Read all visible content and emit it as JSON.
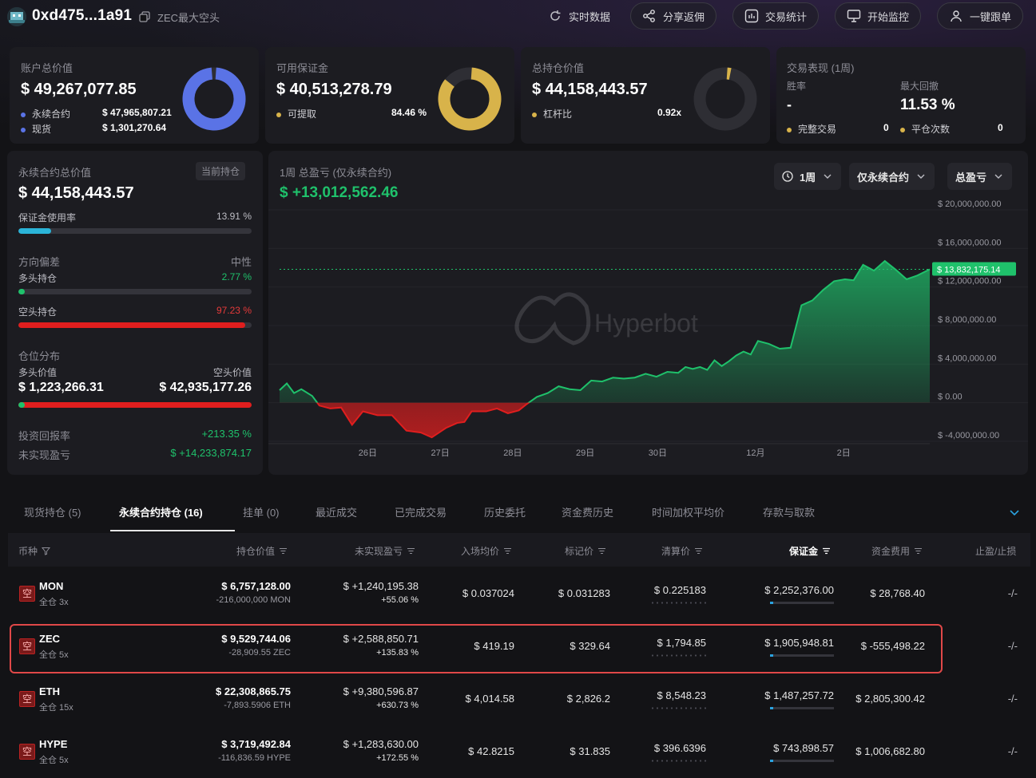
{
  "header": {
    "address": "0xd475...1a91",
    "tagline": "ZEC最大空头",
    "buttons": [
      "实时数据",
      "分享返佣",
      "交易统计",
      "开始监控",
      "一键跟单"
    ]
  },
  "cards": {
    "account": {
      "label": "账户总价值",
      "value": "$ 49,267,077.85",
      "perp_label": "永续合约",
      "perp_value": "$ 47,965,807.21",
      "spot_label": "现货",
      "spot_value": "$ 1,301,270.64",
      "perp_share": 0.974
    },
    "margin": {
      "label": "可用保证金",
      "value": "$ 40,513,278.79",
      "withdraw_label": "可提取",
      "withdraw_value": "84.46 %",
      "share": 0.8446
    },
    "position": {
      "label": "总持仓价值",
      "value": "$ 44,158,443.57",
      "leverage_label": "杠杆比",
      "leverage_value": "0.92x",
      "share": 0.02
    },
    "performance": {
      "label": "交易表现 (1周)",
      "winrate_label": "胜率",
      "winrate_value": "-",
      "drawdown_label": "最大回撤",
      "drawdown_value": "11.53 %",
      "complete_label": "完整交易",
      "complete_value": "0",
      "close_label": "平仓次数",
      "close_value": "0"
    }
  },
  "left_panel": {
    "title": "永续合约总价值",
    "pill": "当前持仓",
    "value": "$ 44,158,443.57",
    "margin_usage_label": "保证金使用率",
    "margin_usage_value": "13.91 %",
    "margin_usage": 0.1391,
    "bias_label": "方向偏差",
    "bias_value": "中性",
    "long_label": "多头持仓",
    "long_value": "2.77 %",
    "long_share": 0.0277,
    "short_label": "空头持仓",
    "short_value": "97.23 %",
    "short_share": 0.9723,
    "dist_label": "仓位分布",
    "long_value_label": "多头价值",
    "short_value_label": "空头价值",
    "long_amount": "$ 1,223,266.31",
    "short_amount": "$ 42,935,177.26",
    "roi_label": "投资回报率",
    "roi_value": "+213.35 %",
    "upnl_label": "未实现盈亏",
    "upnl_value": "$ +14,233,874.17"
  },
  "chart_panel": {
    "title": "1周 总盈亏 (仅永续合约)",
    "value": "$ +13,012,562.46",
    "dropdowns": [
      "1周",
      "仅永续合约",
      "总盈亏"
    ],
    "watermark": "Hyperbot",
    "current_label": "$ 13,832,175.14"
  },
  "chart_data": {
    "type": "area",
    "x_ticks": [
      "26日",
      "27日",
      "28日",
      "29日",
      "30日",
      "12月",
      "2日"
    ],
    "y_ticks": [
      "$ 20,000,000.00",
      "$ 16,000,000.00",
      "$ 12,000,000.00",
      "$ 8,000,000.00",
      "$ 4,000,000.00",
      "$ 0.00",
      "$ -4,000,000.00"
    ],
    "ylim": [
      -4000000,
      20000000
    ],
    "current": 13832175.14,
    "x": [
      25.0,
      25.1,
      25.2,
      25.3,
      25.45,
      25.55,
      25.7,
      25.85,
      26.0,
      26.15,
      26.35,
      26.55,
      26.75,
      26.95,
      27.1,
      27.3,
      27.45,
      27.55,
      27.65,
      27.85,
      28.0,
      28.15,
      28.3,
      28.4,
      28.55,
      28.7,
      28.85,
      29.0,
      29.15,
      29.3,
      29.45,
      29.6,
      29.75,
      29.9,
      30.05,
      30.2,
      30.35,
      30.5,
      30.6,
      30.7,
      30.8,
      30.9,
      31.0,
      31.1,
      31.2,
      31.3,
      31.4,
      31.5,
      31.6,
      31.75,
      31.9,
      32.05,
      32.2,
      32.35,
      32.5,
      32.65,
      32.8,
      32.92,
      33.05,
      33.2,
      33.35,
      33.5,
      33.65,
      33.8,
      33.97
    ],
    "y": [
      1300000,
      2000000,
      1000000,
      1400000,
      700000,
      -300000,
      -600000,
      -500000,
      -2300000,
      -900000,
      -1300000,
      -1300000,
      -2900000,
      -3100000,
      -3600000,
      -2600000,
      -2100000,
      -2000000,
      -900000,
      -900000,
      -600000,
      -1100000,
      -800000,
      -200000,
      600000,
      1000000,
      1700000,
      1400000,
      1300000,
      2300000,
      2200000,
      2600000,
      2500000,
      2600000,
      3000000,
      2700000,
      3200000,
      3100000,
      3700000,
      3500000,
      3700000,
      3400000,
      4400000,
      3800000,
      4300000,
      4900000,
      5300000,
      5000000,
      6400000,
      6100000,
      5600000,
      5700000,
      10100000,
      10600000,
      11700000,
      12600000,
      12800000,
      12700000,
      14300000,
      13700000,
      14700000,
      13800000,
      12800000,
      13200000,
      13832175
    ]
  },
  "tabs": [
    "现货持仓 (5)",
    "永续合约持仓 (16)",
    "挂单 (0)",
    "最近成交",
    "已完成交易",
    "历史委托",
    "资金费历史",
    "时间加权平均价",
    "存款与取款"
  ],
  "table": {
    "headers": [
      "币种",
      "持仓价值",
      "未实现盈亏",
      "入场均价",
      "标记价",
      "清算价",
      "保证金",
      "资金费用",
      "止盈/止损"
    ],
    "side_label": "空",
    "rows": [
      {
        "coin": "MON",
        "mode": "全仓 3x",
        "value": "$ 6,757,128.00",
        "size": "-216,000,000 MON",
        "pnl": "$ +1,240,195.38",
        "pnl_pct": "+55.06 %",
        "entry": "$ 0.037024",
        "mark": "$ 0.031283",
        "liq": "$ 0.225183",
        "margin": "$ 2,252,376.00",
        "funding": "$ 28,768.40",
        "funding_pos": true,
        "tpsl": "-/-"
      },
      {
        "coin": "ZEC",
        "mode": "全仓 5x",
        "value": "$ 9,529,744.06",
        "size": "-28,909.55 ZEC",
        "pnl": "$ +2,588,850.71",
        "pnl_pct": "+135.83 %",
        "entry": "$ 419.19",
        "mark": "$ 329.64",
        "liq": "$ 1,794.85",
        "margin": "$ 1,905,948.81",
        "funding": "$ -555,498.22",
        "funding_pos": false,
        "tpsl": "-/-"
      },
      {
        "coin": "ETH",
        "mode": "全仓 15x",
        "value": "$ 22,308,865.75",
        "size": "-7,893.5906 ETH",
        "pnl": "$ +9,380,596.87",
        "pnl_pct": "+630.73 %",
        "entry": "$ 4,014.58",
        "mark": "$ 2,826.2",
        "liq": "$ 8,548.23",
        "margin": "$ 1,487,257.72",
        "funding": "$ 2,805,300.42",
        "funding_pos": true,
        "tpsl": "-/-"
      },
      {
        "coin": "HYPE",
        "mode": "全仓 5x",
        "value": "$ 3,719,492.84",
        "size": "-116,836.59 HYPE",
        "pnl": "$ +1,283,630.00",
        "pnl_pct": "+172.55 %",
        "entry": "$ 42.8215",
        "mark": "$ 31.835",
        "liq": "$ 396.6396",
        "margin": "$ 743,898.57",
        "funding": "$ 1,006,682.80",
        "funding_pos": true,
        "tpsl": "-/-"
      }
    ]
  }
}
